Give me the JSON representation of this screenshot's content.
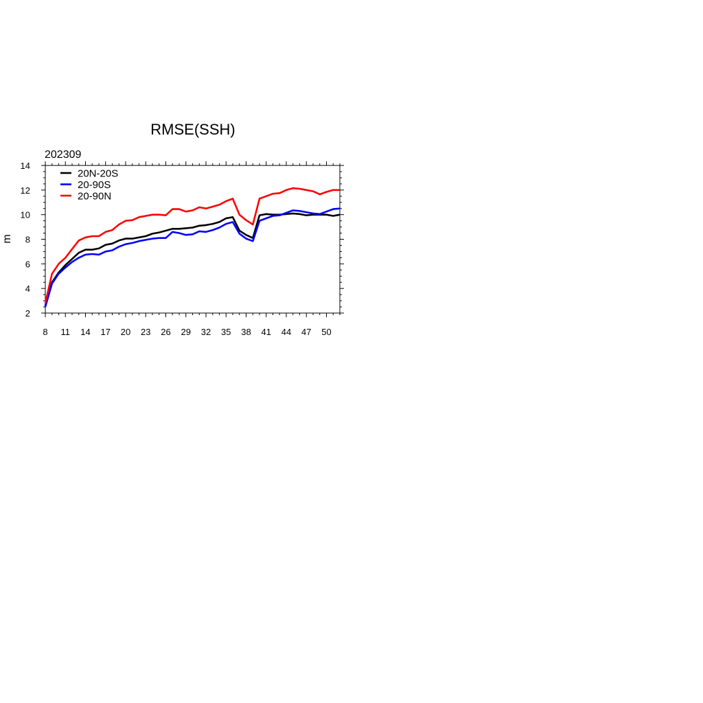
{
  "chart_data": {
    "type": "line",
    "title": "RMSE(SSH)",
    "subtitle": "202309",
    "xlabel": "",
    "ylabel": "m",
    "xlim": [
      8,
      52
    ],
    "ylim": [
      2,
      14
    ],
    "xticks": [
      8,
      11,
      14,
      17,
      20,
      23,
      26,
      29,
      32,
      35,
      38,
      41,
      44,
      47,
      50
    ],
    "yticks": [
      2,
      4,
      6,
      8,
      10,
      12,
      14
    ],
    "grid": false,
    "legend_position": "top-left",
    "x": [
      8,
      9,
      10,
      11,
      12,
      13,
      14,
      15,
      16,
      17,
      18,
      19,
      20,
      21,
      22,
      23,
      24,
      25,
      26,
      27,
      28,
      29,
      30,
      31,
      32,
      33,
      34,
      35,
      36,
      37,
      38,
      39,
      40,
      41,
      42,
      43,
      44,
      45,
      46,
      47,
      48,
      49,
      50,
      51,
      52
    ],
    "series": [
      {
        "name": "20N-20S",
        "color": "#000000",
        "values": [
          2.6,
          4.5,
          5.3,
          5.9,
          6.4,
          6.9,
          7.15,
          7.15,
          7.25,
          7.55,
          7.65,
          7.9,
          8.05,
          8.05,
          8.15,
          8.25,
          8.45,
          8.55,
          8.7,
          8.85,
          8.85,
          8.9,
          8.95,
          9.1,
          9.15,
          9.25,
          9.4,
          9.7,
          9.8,
          8.7,
          8.35,
          8.1,
          9.95,
          10.05,
          10.0,
          10.0,
          10.05,
          10.1,
          10.05,
          9.95,
          10.0,
          10.0,
          10.0,
          9.9,
          10.0
        ]
      },
      {
        "name": "20-90S",
        "color": "#0000ff",
        "values": [
          2.5,
          4.4,
          5.2,
          5.7,
          6.15,
          6.5,
          6.75,
          6.8,
          6.75,
          7.0,
          7.1,
          7.4,
          7.6,
          7.7,
          7.85,
          7.95,
          8.05,
          8.1,
          8.1,
          8.6,
          8.5,
          8.35,
          8.4,
          8.65,
          8.6,
          8.75,
          8.95,
          9.25,
          9.4,
          8.45,
          8.05,
          7.85,
          9.5,
          9.7,
          9.9,
          9.95,
          10.15,
          10.35,
          10.3,
          10.2,
          10.1,
          10.05,
          10.25,
          10.45,
          10.5
        ]
      },
      {
        "name": "20-90N",
        "color": "#ff0000",
        "values": [
          2.8,
          5.2,
          6.0,
          6.5,
          7.2,
          7.9,
          8.15,
          8.25,
          8.25,
          8.6,
          8.75,
          9.2,
          9.5,
          9.55,
          9.8,
          9.9,
          10.0,
          10.0,
          9.95,
          10.45,
          10.45,
          10.25,
          10.35,
          10.6,
          10.5,
          10.65,
          10.8,
          11.1,
          11.3,
          10.0,
          9.55,
          9.2,
          11.3,
          11.5,
          11.7,
          11.75,
          12.0,
          12.15,
          12.1,
          12.0,
          11.9,
          11.65,
          11.85,
          12.0,
          12.0
        ]
      }
    ]
  }
}
